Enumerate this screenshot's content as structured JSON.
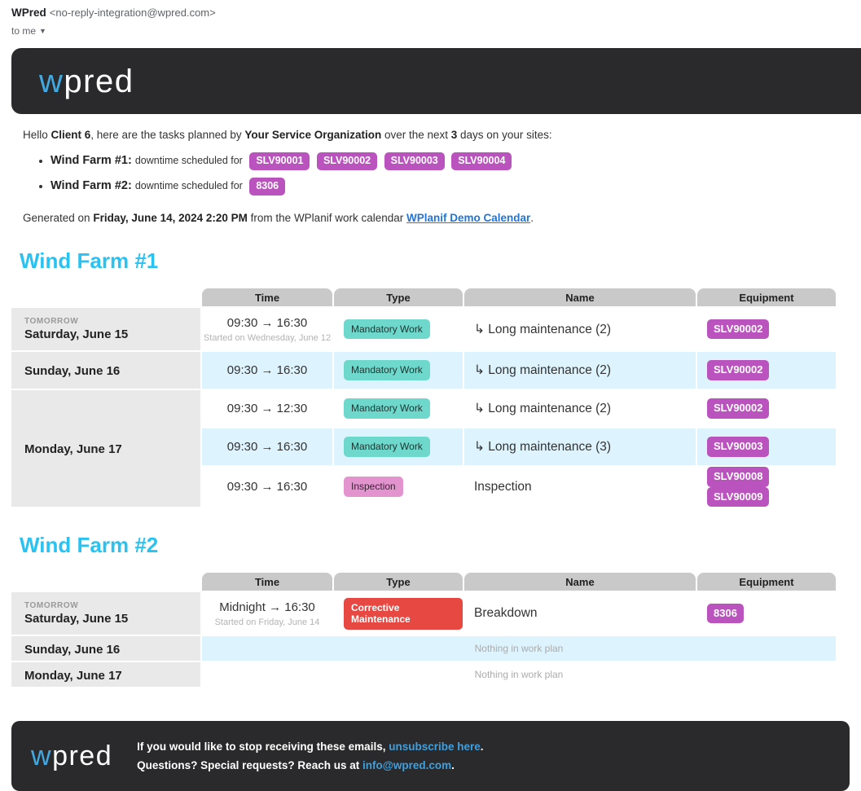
{
  "gmail": {
    "sender": "WPred",
    "sender_email": "<no-reply-integration@wpred.com>",
    "to_label": "to me"
  },
  "logo": {
    "w": "w",
    "rest": "pred"
  },
  "intro": {
    "t1": "Hello ",
    "client": "Client 6",
    "t2": ", here are the tasks planned by ",
    "org": "Your Service Organization",
    "t3": " over the next ",
    "days": "3",
    "t4": " days on your sites:"
  },
  "sites": [
    {
      "name": "Wind Farm #1",
      "sep": ": ",
      "label": "downtime scheduled for",
      "badges": [
        "SLV90001",
        "SLV90002",
        "SLV90003",
        "SLV90004"
      ]
    },
    {
      "name": "Wind Farm #2",
      "sep": ": ",
      "label": "downtime scheduled for",
      "badges": [
        "8306"
      ]
    }
  ],
  "generated": {
    "t1": "Generated on ",
    "date": "Friday, June 14, 2024 2:20 PM",
    "t2": " from the WPlanif work calendar ",
    "link": "WPlanif Demo Calendar",
    "t3": "."
  },
  "headers": {
    "time": "Time",
    "type": "Type",
    "name": "Name",
    "equipment": "Equipment"
  },
  "wf1": {
    "title": "Wind Farm #1",
    "day1_tag": "TOMORROW",
    "day1": "Saturday, June 15",
    "day2": "Sunday, June 16",
    "day3": "Monday, June 17",
    "rows": [
      {
        "time": "09:30 → 16:30",
        "note": "Started on Wednesday, June 12",
        "type": "Mandatory Work",
        "name": "↳ Long maintenance (2)",
        "eq": [
          "SLV90002"
        ]
      },
      {
        "time": "09:30 → 16:30",
        "type": "Mandatory Work",
        "name": "↳ Long maintenance (2)",
        "eq": [
          "SLV90002"
        ]
      },
      {
        "time": "09:30 → 12:30",
        "type": "Mandatory Work",
        "name": "↳ Long maintenance (2)",
        "eq": [
          "SLV90002"
        ]
      },
      {
        "time": "09:30 → 16:30",
        "type": "Mandatory Work",
        "name": "↳ Long maintenance (3)",
        "eq": [
          "SLV90003"
        ]
      },
      {
        "time": "09:30 → 16:30",
        "type": "Inspection",
        "name": "Inspection",
        "eq": [
          "SLV90008",
          "SLV90009"
        ]
      }
    ]
  },
  "wf2": {
    "title": "Wind Farm #2",
    "day1_tag": "TOMORROW",
    "day1": "Saturday, June 15",
    "day2": "Sunday, June 16",
    "day3": "Monday, June 17",
    "rows": [
      {
        "time": "Midnight → 16:30",
        "note": "Started on Friday, June 14",
        "type": "Corrective Maintenance",
        "name": "Breakdown",
        "eq": [
          "8306"
        ]
      }
    ],
    "empty": "Nothing in work plan"
  },
  "footer": {
    "line1_t1": "If you would like to stop receiving these emails, ",
    "line1_link": "unsubscribe here",
    "line1_t2": ".",
    "line2_t1": "Questions? Special requests? Reach us at ",
    "line2_link": "info@wpred.com",
    "line2_t2": "."
  },
  "colors": {
    "accent_cyan": "#29c2f1",
    "badge_purple": "#bb53be",
    "badge_teal": "#6fd8cc",
    "badge_pink": "#e394ce",
    "badge_red": "#e74842",
    "dark_bar": "#2a2a2c",
    "row_blue": "#ddf3fd",
    "header_gray": "#c9c9c9",
    "date_gray": "#e9e9e9"
  }
}
